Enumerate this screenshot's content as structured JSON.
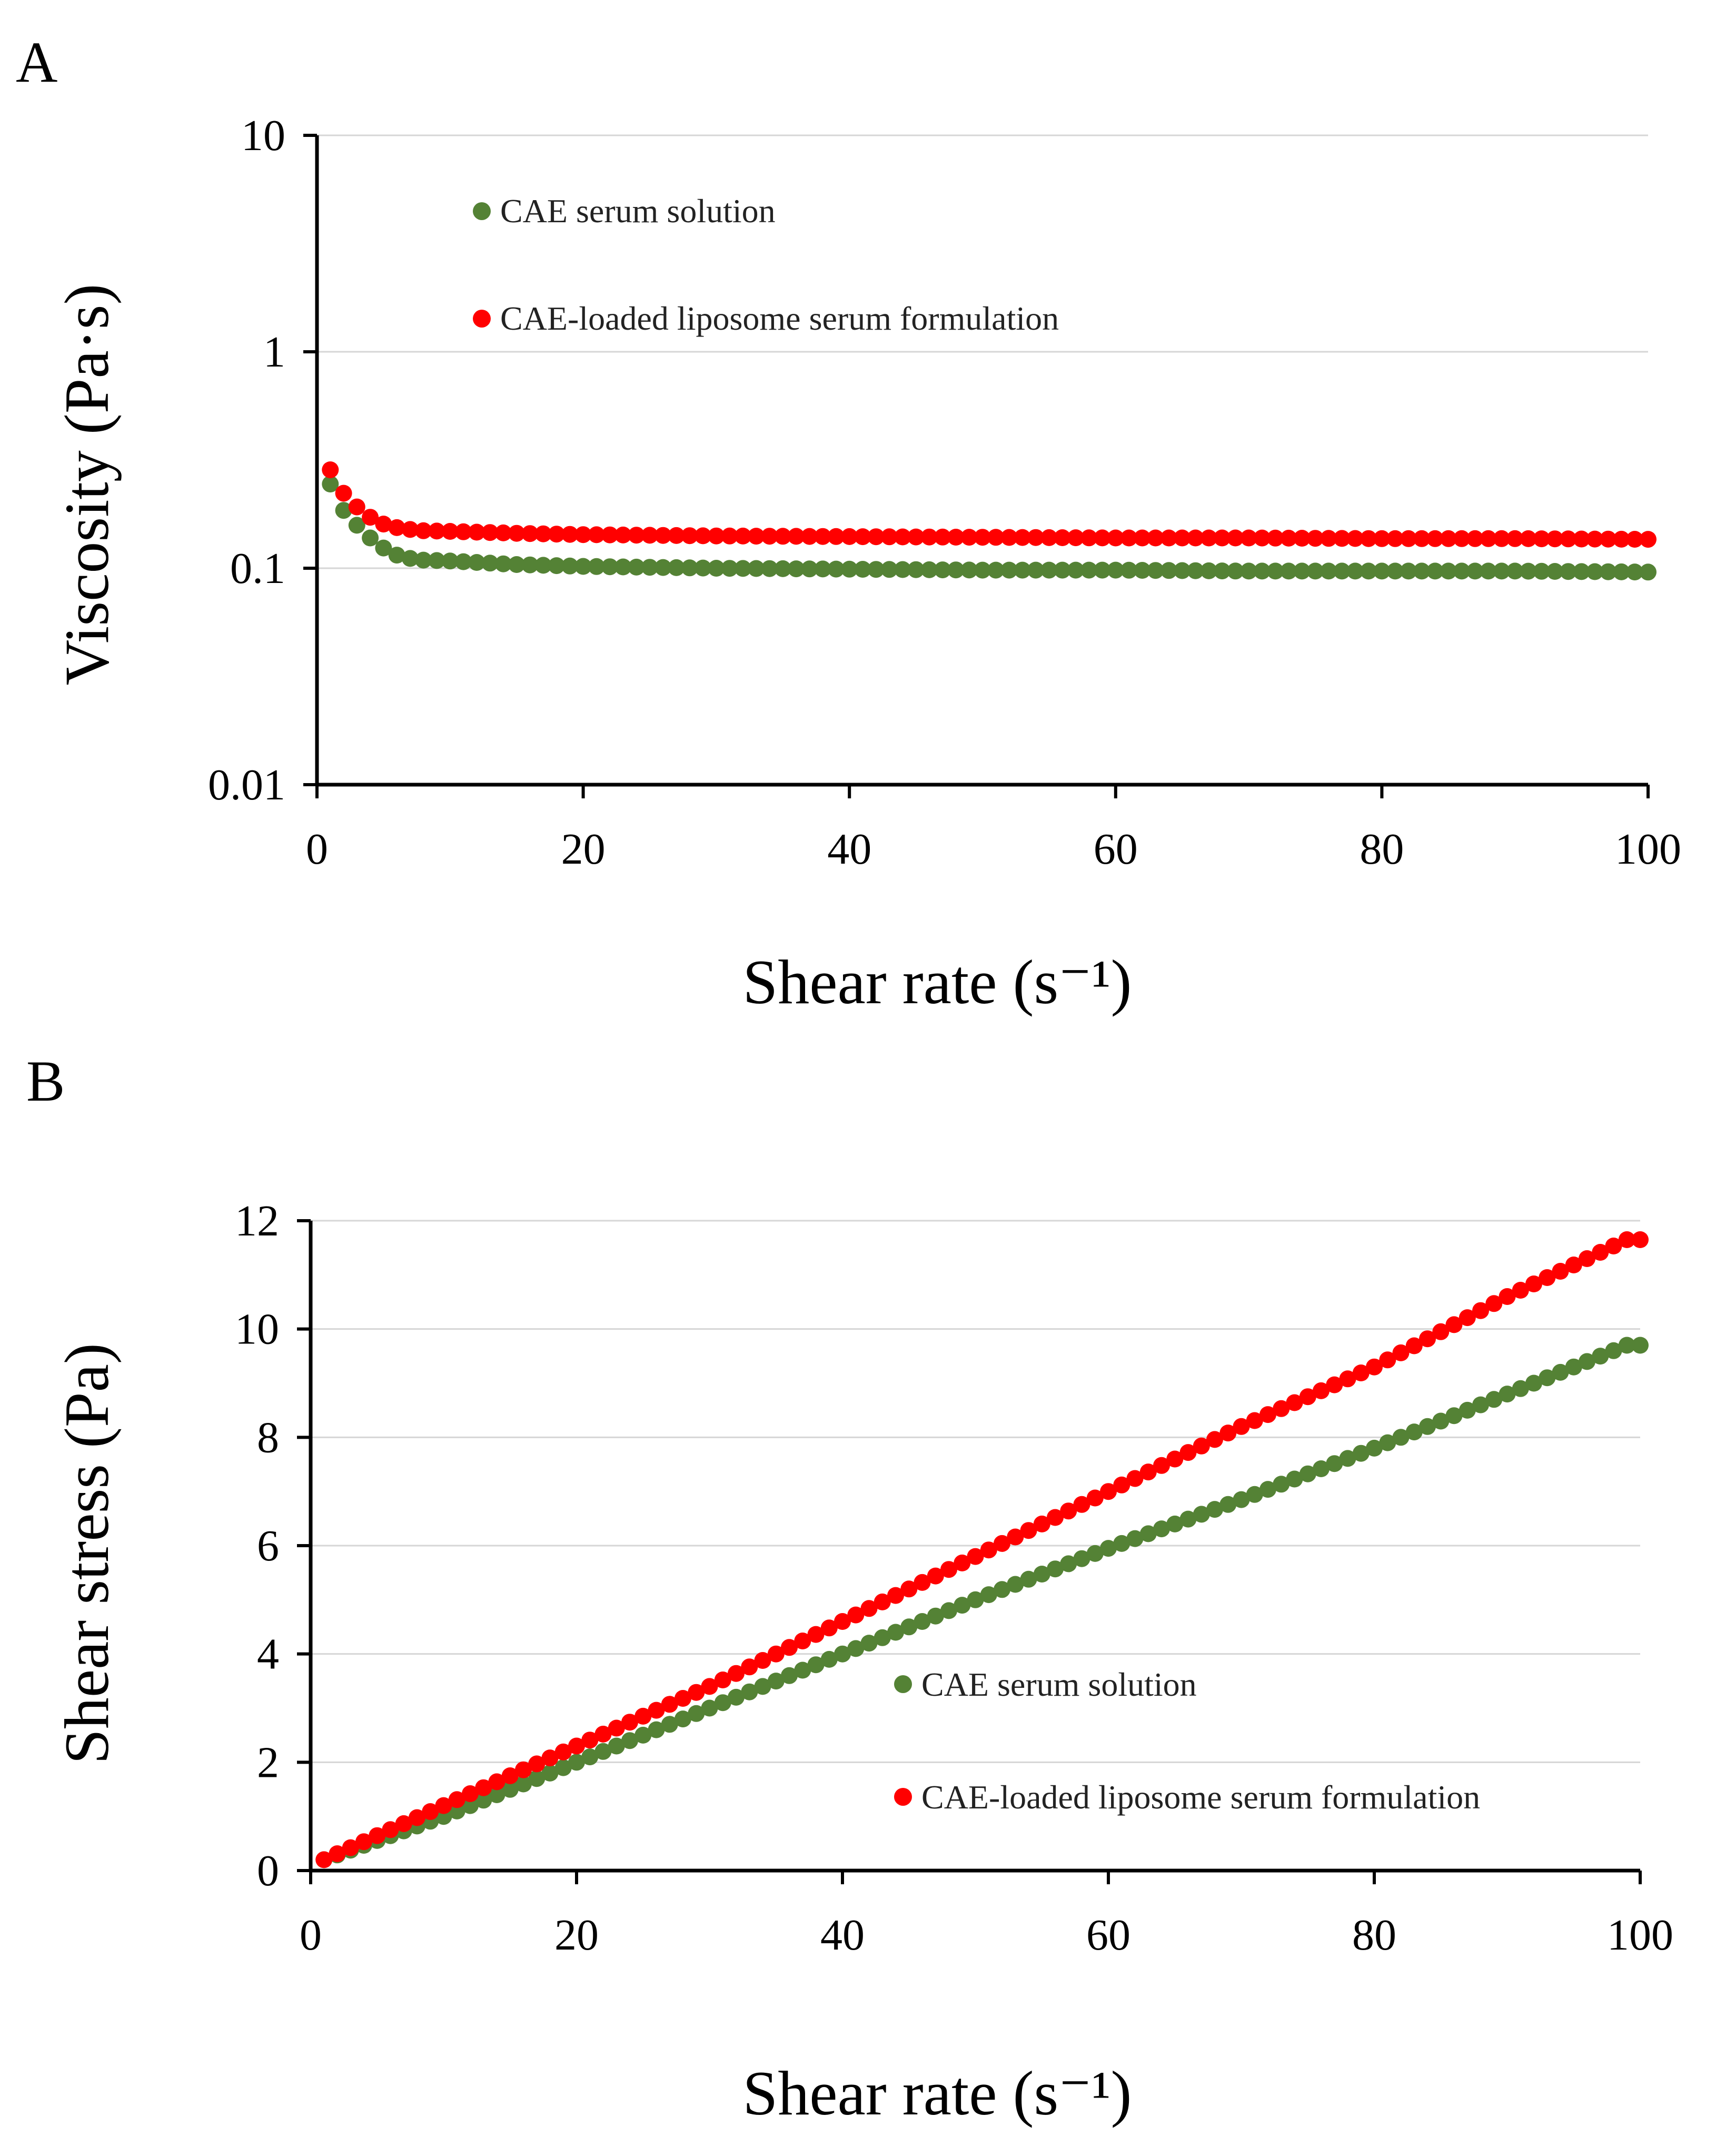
{
  "chart_data": [
    {
      "panel": "A",
      "type": "scatter",
      "title": "",
      "xlabel": "Shear rate (s⁻¹)",
      "ylabel": "Viscosity (Pa·s)",
      "xlim": [
        0,
        100
      ],
      "ylim": [
        0.01,
        10
      ],
      "yscale": "log",
      "xticks": [
        "0",
        "20",
        "40",
        "60",
        "80",
        "100"
      ],
      "yticks": [
        "0.01",
        "0.1",
        "1",
        "10"
      ],
      "legend_position": "top-left",
      "series": [
        {
          "name": "CAE serum solution",
          "color": "#548235",
          "x": [
            1,
            2,
            3,
            4,
            5,
            6,
            7,
            8,
            10,
            15,
            20,
            30,
            40,
            50,
            60,
            70,
            80,
            90,
            100
          ],
          "y": [
            0.245,
            0.185,
            0.158,
            0.138,
            0.124,
            0.115,
            0.111,
            0.109,
            0.108,
            0.104,
            0.102,
            0.1,
            0.099,
            0.098,
            0.098,
            0.097,
            0.097,
            0.097,
            0.096
          ]
        },
        {
          "name": "CAE-loaded liposome serum formulation",
          "color": "#ff0000",
          "x": [
            1,
            2,
            3,
            4,
            5,
            6,
            7,
            8,
            10,
            15,
            20,
            30,
            40,
            50,
            60,
            70,
            80,
            90,
            100
          ],
          "y": [
            0.285,
            0.222,
            0.192,
            0.172,
            0.16,
            0.154,
            0.151,
            0.149,
            0.148,
            0.145,
            0.143,
            0.141,
            0.14,
            0.139,
            0.138,
            0.138,
            0.137,
            0.137,
            0.136
          ]
        }
      ]
    },
    {
      "panel": "B",
      "type": "scatter",
      "title": "",
      "xlabel": "Shear rate (s⁻¹)",
      "ylabel": "Shear stress (Pa)",
      "xlim": [
        0,
        100
      ],
      "ylim": [
        0,
        12
      ],
      "yscale": "linear",
      "xticks": [
        "0",
        "20",
        "40",
        "60",
        "80",
        "100"
      ],
      "yticks": [
        "0",
        "2",
        "4",
        "6",
        "8",
        "10",
        "12"
      ],
      "legend_position": "bottom-right",
      "series": [
        {
          "name": "CAE serum solution",
          "color": "#548235",
          "x": [
            1,
            10,
            20,
            30,
            40,
            50,
            60,
            70,
            80,
            90,
            99,
            100
          ],
          "y": [
            0.2,
            1.0,
            2.0,
            3.0,
            4.0,
            5.0,
            5.95,
            6.85,
            7.8,
            8.8,
            9.7,
            9.7
          ]
        },
        {
          "name": "CAE-loaded liposome serum formulation",
          "color": "#ff0000",
          "x": [
            1,
            10,
            20,
            30,
            40,
            50,
            60,
            70,
            80,
            90,
            99,
            100
          ],
          "y": [
            0.2,
            1.2,
            2.3,
            3.4,
            4.6,
            5.8,
            7.0,
            8.2,
            9.3,
            10.6,
            11.65,
            11.65
          ]
        }
      ]
    }
  ]
}
